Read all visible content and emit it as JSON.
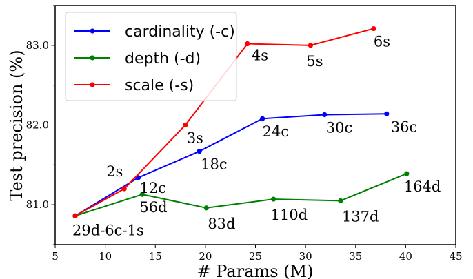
{
  "chart_data": {
    "type": "line",
    "xlabel": "# Params (M)",
    "ylabel": "Test precision (%)",
    "xlim": [
      5,
      45
    ],
    "ylim": [
      80.5,
      83.5
    ],
    "xticks": [
      5,
      10,
      15,
      20,
      25,
      30,
      35,
      40,
      45
    ],
    "yticks": [
      81.0,
      82.0,
      83.0
    ],
    "xtick_labels": [
      "5",
      "10",
      "15",
      "20",
      "25",
      "30",
      "35",
      "40",
      "45"
    ],
    "ytick_labels": [
      "81.0",
      "82.0",
      "83.0"
    ],
    "grid": false,
    "legend_position": "top-left",
    "series": [
      {
        "name": "cardinality (-c)",
        "color": "#0000ff",
        "x": [
          7.0,
          13.3,
          19.4,
          25.7,
          31.9,
          38.1
        ],
        "y": [
          80.86,
          81.34,
          81.67,
          82.08,
          82.13,
          82.14
        ]
      },
      {
        "name": "depth (-d)",
        "color": "#008000",
        "x": [
          7.0,
          13.7,
          20.1,
          26.8,
          33.5,
          40.1
        ],
        "y": [
          80.86,
          81.13,
          80.96,
          81.07,
          81.05,
          81.39
        ]
      },
      {
        "name": "scale (-s)",
        "color": "#ff0000",
        "x": [
          7.0,
          11.9,
          18.0,
          24.2,
          30.5,
          36.8
        ],
        "y": [
          80.86,
          81.2,
          82.0,
          83.02,
          83.0,
          83.21
        ]
      }
    ],
    "annotations": [
      {
        "text": "29d-6c-1s",
        "x": 7.0,
        "y": 80.86,
        "dx": -4,
        "dy": 28
      },
      {
        "text": "2s",
        "x": 11.9,
        "y": 81.2,
        "dx": -26,
        "dy": -18
      },
      {
        "text": "12c",
        "x": 13.3,
        "y": 81.34,
        "dx": 2,
        "dy": 22
      },
      {
        "text": "56d",
        "x": 13.7,
        "y": 81.13,
        "dx": -4,
        "dy": 26
      },
      {
        "text": "3s",
        "x": 18.0,
        "y": 82.0,
        "dx": 2,
        "dy": 26
      },
      {
        "text": "18c",
        "x": 19.4,
        "y": 81.67,
        "dx": 2,
        "dy": 26
      },
      {
        "text": "83d",
        "x": 20.1,
        "y": 80.96,
        "dx": 2,
        "dy": 30
      },
      {
        "text": "4s",
        "x": 24.2,
        "y": 83.02,
        "dx": 6,
        "dy": 24
      },
      {
        "text": "24c",
        "x": 25.7,
        "y": 82.08,
        "dx": 0,
        "dy": 26
      },
      {
        "text": "110d",
        "x": 26.8,
        "y": 81.07,
        "dx": -4,
        "dy": 30
      },
      {
        "text": "5s",
        "x": 30.5,
        "y": 83.0,
        "dx": -6,
        "dy": 30
      },
      {
        "text": "30c",
        "x": 31.9,
        "y": 82.13,
        "dx": 2,
        "dy": 26
      },
      {
        "text": "137d",
        "x": 33.5,
        "y": 81.05,
        "dx": 2,
        "dy": 30
      },
      {
        "text": "6s",
        "x": 36.8,
        "y": 83.21,
        "dx": 0,
        "dy": 26
      },
      {
        "text": "36c",
        "x": 38.1,
        "y": 82.14,
        "dx": 6,
        "dy": 26
      },
      {
        "text": "164d",
        "x": 40.1,
        "y": 81.39,
        "dx": -4,
        "dy": 26
      }
    ]
  }
}
